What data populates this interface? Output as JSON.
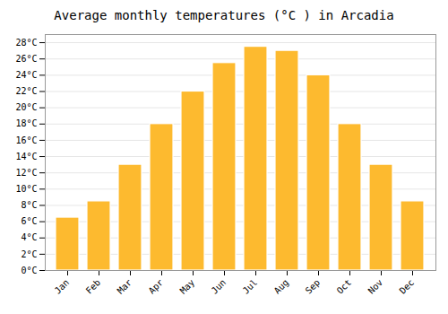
{
  "chart_data": {
    "type": "bar",
    "title": "Average monthly temperatures (°C ) in Arcadia",
    "categories": [
      "Jan",
      "Feb",
      "Mar",
      "Apr",
      "May",
      "Jun",
      "Jul",
      "Aug",
      "Sep",
      "Oct",
      "Nov",
      "Dec"
    ],
    "values": [
      6.5,
      8.5,
      13.0,
      18.0,
      22.0,
      25.5,
      27.5,
      27.0,
      24.0,
      18.0,
      13.0,
      8.5
    ],
    "color": "#FDBA2F",
    "ylim": [
      0,
      29
    ],
    "yticks": [
      {
        "value": 0,
        "label": "0°C"
      },
      {
        "value": 2,
        "label": "2°C"
      },
      {
        "value": 4,
        "label": "4°C"
      },
      {
        "value": 6,
        "label": "6°C"
      },
      {
        "value": 8,
        "label": "8°C"
      },
      {
        "value": 10,
        "label": "10°C"
      },
      {
        "value": 12,
        "label": "12°C"
      },
      {
        "value": 14,
        "label": "14°C"
      },
      {
        "value": 16,
        "label": "16°C"
      },
      {
        "value": 18,
        "label": "18°C"
      },
      {
        "value": 20,
        "label": "20°C"
      },
      {
        "value": 22,
        "label": "22°C"
      },
      {
        "value": 24,
        "label": "24°C"
      },
      {
        "value": 26,
        "label": "26°C"
      },
      {
        "value": 28,
        "label": "28°C"
      }
    ],
    "grid": true
  }
}
